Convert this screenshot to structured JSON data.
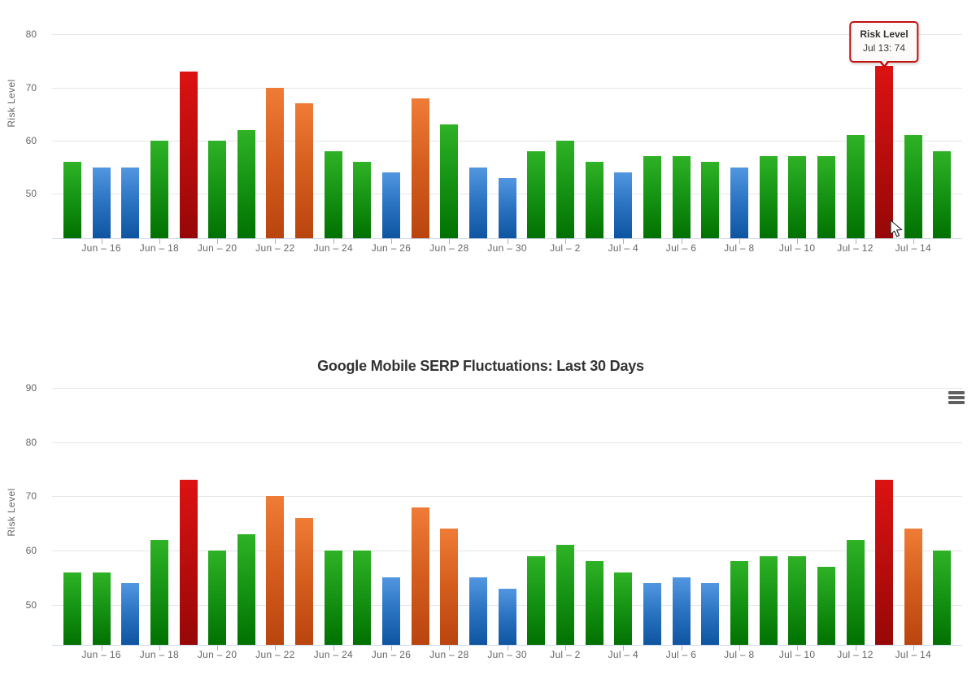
{
  "tooltip": {
    "header": "Risk Level",
    "body": "Jul 13: 74"
  },
  "context_menu_icon": "hamburger-icon",
  "colors": {
    "green_top": "#2fb226",
    "green_bottom": "#017101",
    "blue_top": "#5296e0",
    "blue_bottom": "#0e54a1",
    "red_top": "#dc1212",
    "red_bottom": "#970707",
    "orange_top": "#ef7c36",
    "orange_bottom": "#b9440e",
    "gridline": "#e6e6e6",
    "axis_line": "#ccd6eb",
    "axis_text": "#666666",
    "title_text": "#333333",
    "tooltip_border": "#c40f0f"
  },
  "chart_data": [
    {
      "type": "bar",
      "title": "",
      "ylabel": "Risk Level",
      "yticks": [
        50,
        60,
        70,
        80
      ],
      "ylim": [
        41.6,
        82
      ],
      "grid": "horizontal",
      "legend": "none",
      "note": "top chart is vertically cropped by the viewport; title not visible",
      "categories": [
        "Jun 15",
        "Jun 16",
        "Jun 17",
        "Jun 18",
        "Jun 19",
        "Jun 20",
        "Jun 21",
        "Jun 22",
        "Jun 23",
        "Jun 24",
        "Jun 25",
        "Jun 26",
        "Jun 27",
        "Jun 28",
        "Jun 29",
        "Jun 30",
        "Jul 1",
        "Jul 2",
        "Jul 3",
        "Jul 4",
        "Jul 5",
        "Jul 6",
        "Jul 7",
        "Jul 8",
        "Jul 9",
        "Jul 10",
        "Jul 11",
        "Jul 12",
        "Jul 13",
        "Jul 14",
        "Jul 15"
      ],
      "xtick_labels": [
        "Jun – 16",
        "Jun – 18",
        "Jun – 20",
        "Jun – 22",
        "Jun – 24",
        "Jun – 26",
        "Jun – 28",
        "Jun – 30",
        "Jul – 2",
        "Jul – 4",
        "Jul – 6",
        "Jul – 8",
        "Jul – 10",
        "Jul – 12",
        "Jul – 14"
      ],
      "values": [
        56,
        55,
        55,
        60,
        73,
        60,
        62,
        70,
        67,
        58,
        56,
        54,
        68,
        63,
        55,
        53,
        58,
        60,
        56,
        54,
        57,
        57,
        56,
        55,
        57,
        57,
        57,
        61,
        74,
        61,
        58
      ],
      "bar_colors": [
        "green",
        "blue",
        "blue",
        "green",
        "red",
        "green",
        "green",
        "orange",
        "orange",
        "green",
        "green",
        "blue",
        "orange",
        "green",
        "blue",
        "blue",
        "green",
        "green",
        "green",
        "blue",
        "green",
        "green",
        "green",
        "blue",
        "green",
        "green",
        "green",
        "green",
        "red",
        "green",
        "green"
      ],
      "highlighted_bar": {
        "category": "Jul 13",
        "value": 74,
        "color": "red"
      }
    },
    {
      "type": "bar",
      "title": "Google Mobile SERP Fluctuations: Last 30 Days",
      "ylabel": "Risk Level",
      "yticks": [
        50,
        60,
        70,
        80,
        90
      ],
      "ylim": [
        42.6,
        92
      ],
      "grid": "horizontal",
      "legend": "none",
      "categories": [
        "Jun 15",
        "Jun 16",
        "Jun 17",
        "Jun 18",
        "Jun 19",
        "Jun 20",
        "Jun 21",
        "Jun 22",
        "Jun 23",
        "Jun 24",
        "Jun 25",
        "Jun 26",
        "Jun 27",
        "Jun 28",
        "Jun 29",
        "Jun 30",
        "Jul 1",
        "Jul 2",
        "Jul 3",
        "Jul 4",
        "Jul 5",
        "Jul 6",
        "Jul 7",
        "Jul 8",
        "Jul 9",
        "Jul 10",
        "Jul 11",
        "Jul 12",
        "Jul 13",
        "Jul 14",
        "Jul 15"
      ],
      "xtick_labels": [
        "Jun – 16",
        "Jun – 18",
        "Jun – 20",
        "Jun – 22",
        "Jun – 24",
        "Jun – 26",
        "Jun – 28",
        "Jun – 30",
        "Jul – 2",
        "Jul – 4",
        "Jul – 6",
        "Jul – 8",
        "Jul – 10",
        "Jul – 12",
        "Jul – 14"
      ],
      "values": [
        56,
        56,
        54,
        62,
        73,
        60,
        63,
        70,
        66,
        60,
        60,
        55,
        68,
        64,
        55,
        53,
        59,
        61,
        58,
        56,
        54,
        55,
        54,
        58,
        59,
        59,
        57,
        62,
        73,
        64,
        60
      ],
      "bar_colors": [
        "green",
        "green",
        "blue",
        "green",
        "red",
        "green",
        "green",
        "orange",
        "orange",
        "green",
        "green",
        "blue",
        "orange",
        "orange",
        "blue",
        "blue",
        "green",
        "green",
        "green",
        "green",
        "blue",
        "blue",
        "blue",
        "green",
        "green",
        "green",
        "green",
        "green",
        "red",
        "orange",
        "green"
      ]
    }
  ]
}
